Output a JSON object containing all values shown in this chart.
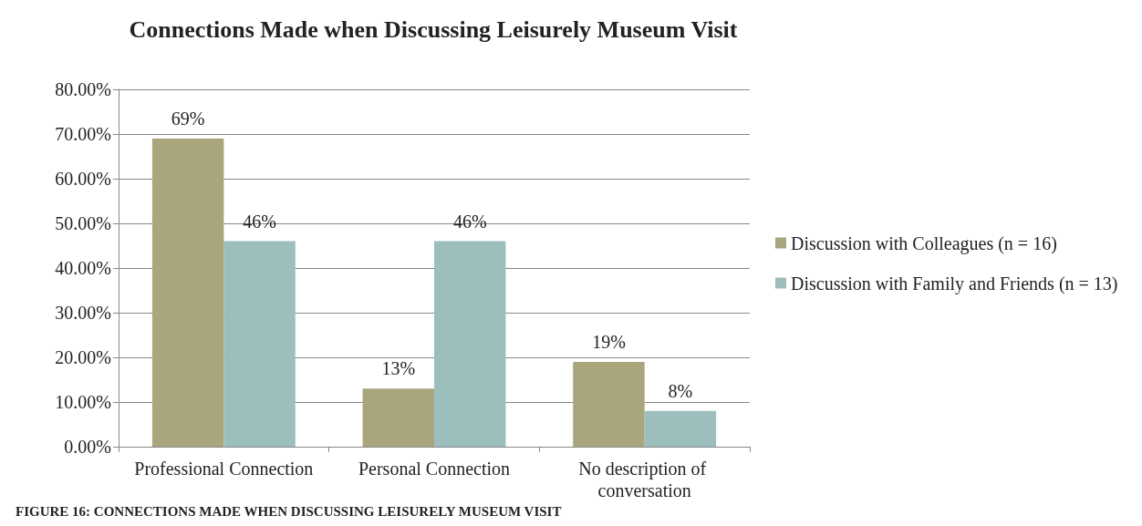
{
  "chart_data": {
    "type": "bar",
    "title": "Connections Made when Discussing Leisurely Museum Visit",
    "annotations": [
      "FIGURE 16: CONNECTIONS MADE WHEN DISCUSSING LEISURELY MUSEUM VISIT"
    ],
    "categories": [
      "Professional Connection",
      "Personal Connection",
      "No description of conversation"
    ],
    "series": [
      {
        "name": "Discussion with Colleagues (n = 16)",
        "color": "#a9a57c",
        "values": [
          69,
          13,
          19
        ],
        "value_labels": [
          "69%",
          "13%",
          "19%"
        ]
      },
      {
        "name": "Discussion with Family and Friends (n = 13)",
        "color": "#9cbebd",
        "values": [
          46,
          46,
          8
        ],
        "value_labels": [
          "46%",
          "46%",
          "8%"
        ]
      }
    ],
    "ylim": [
      0,
      80
    ],
    "yticks": [
      {
        "value": 0,
        "label": "0.00%"
      },
      {
        "value": 10,
        "label": "10.00%"
      },
      {
        "value": 20,
        "label": "20.00%"
      },
      {
        "value": 30,
        "label": "30.00%"
      },
      {
        "value": 40,
        "label": "40.00%"
      },
      {
        "value": 50,
        "label": "50.00%"
      },
      {
        "value": 60,
        "label": "60.00%"
      },
      {
        "value": 70,
        "label": "70.00%"
      },
      {
        "value": 80,
        "label": "80.00%"
      }
    ],
    "grid": "y",
    "legend": "right"
  }
}
